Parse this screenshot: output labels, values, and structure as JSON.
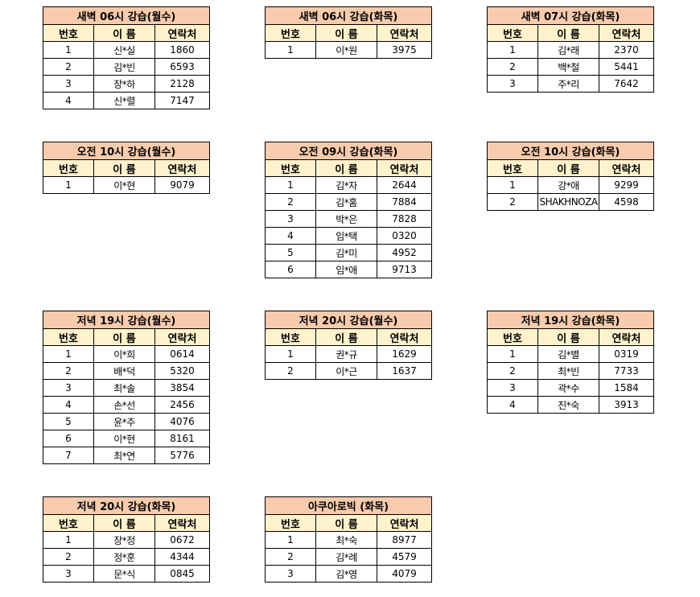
{
  "colors": {
    "title_bg": "#F8CBAD",
    "header_bg": "#FFF2CC"
  },
  "headers": [
    "번호",
    "이 름",
    "연락처"
  ],
  "tables": [
    {
      "title": "새벽 06시 강습(월수)",
      "rows": [
        [
          "1",
          "신*실",
          "1860"
        ],
        [
          "2",
          "김*빈",
          "6593"
        ],
        [
          "3",
          "장*하",
          "2128"
        ],
        [
          "4",
          "신*렬",
          "7147"
        ]
      ]
    },
    {
      "title": "새벽 06시 강습(화목)",
      "rows": [
        [
          "1",
          "이*원",
          "3975"
        ]
      ]
    },
    {
      "title": "새벽 07시 강습(화목)",
      "rows": [
        [
          "1",
          "김*래",
          "2370"
        ],
        [
          "2",
          "백*철",
          "5441"
        ],
        [
          "3",
          "주*리",
          "7642"
        ]
      ]
    },
    {
      "title": "오전 10시 강습(월수)",
      "rows": [
        [
          "1",
          "이*현",
          "9079"
        ]
      ]
    },
    {
      "title": "오전 09시 강습(화목)",
      "rows": [
        [
          "1",
          "김*자",
          "2644"
        ],
        [
          "2",
          "김*홈",
          "7884"
        ],
        [
          "3",
          "박*은",
          "7828"
        ],
        [
          "4",
          "임*택",
          "0320"
        ],
        [
          "5",
          "김*미",
          "4952"
        ],
        [
          "6",
          "임*애",
          "9713"
        ]
      ]
    },
    {
      "title": "오전 10시 강습(화목)",
      "rows": [
        [
          "1",
          "강*애",
          "9299"
        ],
        [
          "2",
          "SHAKHNOZA",
          "4598"
        ]
      ]
    },
    {
      "title": "저녁 19시 강습(월수)",
      "rows": [
        [
          "1",
          "이*희",
          "0614"
        ],
        [
          "2",
          "배*덕",
          "5320"
        ],
        [
          "3",
          "최*솔",
          "3854"
        ],
        [
          "4",
          "손*선",
          "2456"
        ],
        [
          "5",
          "윤*주",
          "4076"
        ],
        [
          "6",
          "이*현",
          "8161"
        ],
        [
          "7",
          "최*연",
          "5776"
        ]
      ]
    },
    {
      "title": "저녁 20시 강습(월수)",
      "rows": [
        [
          "1",
          "권*규",
          "1629"
        ],
        [
          "2",
          "이*근",
          "1637"
        ]
      ]
    },
    {
      "title": "저녁 19시 강습(화목)",
      "rows": [
        [
          "1",
          "김*별",
          "0319"
        ],
        [
          "2",
          "최*빈",
          "7733"
        ],
        [
          "3",
          "곽*수",
          "1584"
        ],
        [
          "4",
          "진*숙",
          "3913"
        ]
      ]
    },
    {
      "title": "저녁 20시 강습(화목)",
      "rows": [
        [
          "1",
          "장*정",
          "0672"
        ],
        [
          "2",
          "정*훈",
          "4344"
        ],
        [
          "3",
          "문*식",
          "0845"
        ]
      ]
    },
    {
      "title": "아쿠아로빅 (화목)",
      "rows": [
        [
          "1",
          "최*숙",
          "8977"
        ],
        [
          "2",
          "김*례",
          "4579"
        ],
        [
          "3",
          "김*영",
          "4079"
        ]
      ]
    }
  ]
}
